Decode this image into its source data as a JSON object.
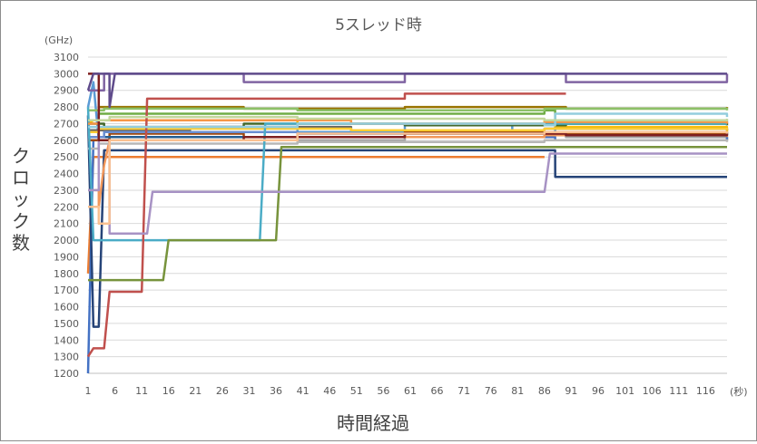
{
  "chart_data": {
    "type": "line",
    "title": "5スレッド時",
    "xlabel": "時間経過",
    "ylabel": "クロック数",
    "y_unit": "(GHz)",
    "x_unit": "(秒)",
    "ylim": [
      1200,
      3100
    ],
    "y_ticks": [
      1200,
      1300,
      1400,
      1500,
      1600,
      1700,
      1800,
      1900,
      2000,
      2100,
      2200,
      2300,
      2400,
      2500,
      2600,
      2700,
      2800,
      2900,
      3000,
      3100
    ],
    "x_ticks": [
      1,
      6,
      11,
      16,
      21,
      26,
      31,
      36,
      41,
      46,
      51,
      56,
      61,
      66,
      71,
      76,
      81,
      86,
      91,
      96,
      101,
      106,
      111,
      116
    ],
    "xlim": [
      1,
      120
    ],
    "grid": "horizontal",
    "legend": "none",
    "series": [
      {
        "color": "#5b9bd5",
        "values": [
          [
            1,
            2800
          ],
          [
            2,
            2950
          ],
          [
            3,
            2600
          ],
          [
            5,
            2650
          ],
          [
            20,
            2680
          ],
          [
            40,
            2650
          ],
          [
            60,
            2700
          ],
          [
            80,
            2650
          ],
          [
            88,
            2700
          ],
          [
            100,
            2720
          ],
          [
            120,
            2700
          ]
        ]
      },
      {
        "color": "#ed7d31",
        "values": [
          [
            1,
            1800
          ],
          [
            2,
            2500
          ],
          [
            86,
            2500
          ]
        ]
      },
      {
        "color": "#a5a5a5",
        "values": [
          [
            1,
            2600
          ],
          [
            3,
            2620
          ],
          [
            30,
            2600
          ],
          [
            60,
            2640
          ],
          [
            90,
            2620
          ],
          [
            120,
            2600
          ]
        ]
      },
      {
        "color": "#ffc000",
        "values": [
          [
            1,
            2700
          ],
          [
            2,
            2720
          ],
          [
            40,
            2700
          ],
          [
            86,
            2720
          ],
          [
            88,
            2680
          ],
          [
            120,
            2650
          ]
        ]
      },
      {
        "color": "#4472c4",
        "values": [
          [
            1,
            1200
          ],
          [
            2,
            2600
          ],
          [
            40,
            2620
          ],
          [
            88,
            2600
          ],
          [
            120,
            2620
          ]
        ]
      },
      {
        "color": "#70ad47",
        "values": [
          [
            1,
            2780
          ],
          [
            3,
            2760
          ],
          [
            50,
            2760
          ],
          [
            86,
            2780
          ],
          [
            88,
            2700
          ],
          [
            120,
            2700
          ]
        ]
      },
      {
        "color": "#264478",
        "values": [
          [
            1,
            2750
          ],
          [
            2,
            1480
          ],
          [
            3,
            1480
          ],
          [
            4,
            2540
          ],
          [
            86,
            2540
          ],
          [
            88,
            2380
          ],
          [
            120,
            2380
          ]
        ]
      },
      {
        "color": "#9e480e",
        "values": [
          [
            1,
            2600
          ],
          [
            5,
            2640
          ],
          [
            30,
            2620
          ],
          [
            60,
            2650
          ],
          [
            90,
            2640
          ],
          [
            120,
            2650
          ]
        ]
      },
      {
        "color": "#636363",
        "values": [
          [
            1,
            2660
          ],
          [
            20,
            2680
          ],
          [
            50,
            2660
          ],
          [
            86,
            2670
          ],
          [
            120,
            2660
          ]
        ]
      },
      {
        "color": "#997300",
        "values": [
          [
            1,
            2780
          ],
          [
            3,
            2800
          ],
          [
            30,
            2790
          ],
          [
            60,
            2800
          ],
          [
            90,
            2790
          ],
          [
            120,
            2800
          ]
        ]
      },
      {
        "color": "#255e91",
        "values": [
          [
            1,
            2650
          ],
          [
            3,
            2620
          ],
          [
            40,
            2640
          ],
          [
            86,
            2630
          ],
          [
            120,
            2640
          ]
        ]
      },
      {
        "color": "#43682b",
        "values": [
          [
            1,
            2700
          ],
          [
            4,
            2680
          ],
          [
            30,
            2700
          ],
          [
            60,
            2690
          ],
          [
            90,
            2700
          ],
          [
            120,
            2690
          ]
        ]
      },
      {
        "color": "#698ed0",
        "values": [
          [
            1,
            2620
          ],
          [
            4,
            2650
          ],
          [
            40,
            2640
          ],
          [
            86,
            2650
          ],
          [
            120,
            2640
          ]
        ]
      },
      {
        "color": "#f1975a",
        "values": [
          [
            1,
            2300
          ],
          [
            3,
            2200
          ],
          [
            4,
            2450
          ],
          [
            5,
            2600
          ],
          [
            40,
            2620
          ],
          [
            86,
            2630
          ],
          [
            120,
            2620
          ]
        ]
      },
      {
        "color": "#b7b7b7",
        "values": [
          [
            1,
            2550
          ],
          [
            3,
            2580
          ],
          [
            40,
            2590
          ],
          [
            86,
            2600
          ],
          [
            120,
            2590
          ]
        ]
      },
      {
        "color": "#ffcd33",
        "values": [
          [
            1,
            2650
          ],
          [
            3,
            2670
          ],
          [
            50,
            2660
          ],
          [
            86,
            2670
          ],
          [
            120,
            2660
          ]
        ]
      },
      {
        "color": "#8cc168",
        "values": [
          [
            1,
            2780
          ],
          [
            4,
            2790
          ],
          [
            40,
            2780
          ],
          [
            86,
            2790
          ],
          [
            120,
            2780
          ]
        ]
      },
      {
        "color": "#8064a2",
        "values": [
          [
            1,
            2900
          ],
          [
            4,
            3000
          ],
          [
            30,
            2950
          ],
          [
            60,
            3000
          ],
          [
            90,
            2950
          ],
          [
            120,
            3000
          ]
        ]
      },
      {
        "color": "#4bacc6",
        "values": [
          [
            1,
            2800
          ],
          [
            2,
            2000
          ],
          [
            33,
            2000
          ],
          [
            34,
            2700
          ],
          [
            120,
            2700
          ]
        ]
      },
      {
        "color": "#f79646",
        "values": [
          [
            1,
            2700
          ],
          [
            3,
            2720
          ],
          [
            50,
            2700
          ],
          [
            86,
            2710
          ],
          [
            120,
            2700
          ]
        ]
      },
      {
        "color": "#c0504d",
        "values": [
          [
            1,
            1300
          ],
          [
            2,
            1350
          ],
          [
            4,
            1350
          ],
          [
            5,
            1690
          ],
          [
            11,
            1690
          ],
          [
            12,
            2850
          ],
          [
            30,
            2850
          ],
          [
            60,
            2880
          ],
          [
            90,
            2880
          ]
        ]
      },
      {
        "color": "#77933c",
        "values": [
          [
            1,
            1760
          ],
          [
            2,
            1760
          ],
          [
            15,
            1760
          ],
          [
            16,
            2000
          ],
          [
            36,
            2000
          ],
          [
            37,
            2560
          ],
          [
            120,
            2560
          ]
        ]
      },
      {
        "color": "#a792c4",
        "values": [
          [
            1,
            2300
          ],
          [
            3,
            2600
          ],
          [
            5,
            2040
          ],
          [
            12,
            2040
          ],
          [
            13,
            2290
          ],
          [
            86,
            2290
          ],
          [
            87,
            2520
          ],
          [
            120,
            2520
          ]
        ]
      },
      {
        "color": "#93cddd",
        "values": [
          [
            1,
            2680
          ],
          [
            2,
            2680
          ],
          [
            40,
            2700
          ],
          [
            86,
            2690
          ],
          [
            88,
            2760
          ],
          [
            120,
            2740
          ]
        ]
      },
      {
        "color": "#7f1f1f",
        "values": [
          [
            1,
            3000
          ],
          [
            3,
            2600
          ],
          [
            30,
            2620
          ],
          [
            60,
            2640
          ],
          [
            90,
            2630
          ],
          [
            120,
            2640
          ]
        ]
      },
      {
        "color": "#5f4b8b",
        "values": [
          [
            1,
            2900
          ],
          [
            2,
            3000
          ],
          [
            5,
            2800
          ],
          [
            6,
            3000
          ],
          [
            20,
            3000
          ],
          [
            60,
            3000
          ],
          [
            90,
            3000
          ],
          [
            120,
            3000
          ]
        ]
      },
      {
        "color": "#fac090",
        "values": [
          [
            1,
            2200
          ],
          [
            3,
            2100
          ],
          [
            5,
            2600
          ],
          [
            40,
            2640
          ],
          [
            86,
            2650
          ],
          [
            120,
            2640
          ]
        ]
      },
      {
        "color": "#c3d69b",
        "values": [
          [
            1,
            2720
          ],
          [
            5,
            2740
          ],
          [
            40,
            2730
          ],
          [
            86,
            2720
          ],
          [
            120,
            2730
          ]
        ]
      }
    ]
  }
}
